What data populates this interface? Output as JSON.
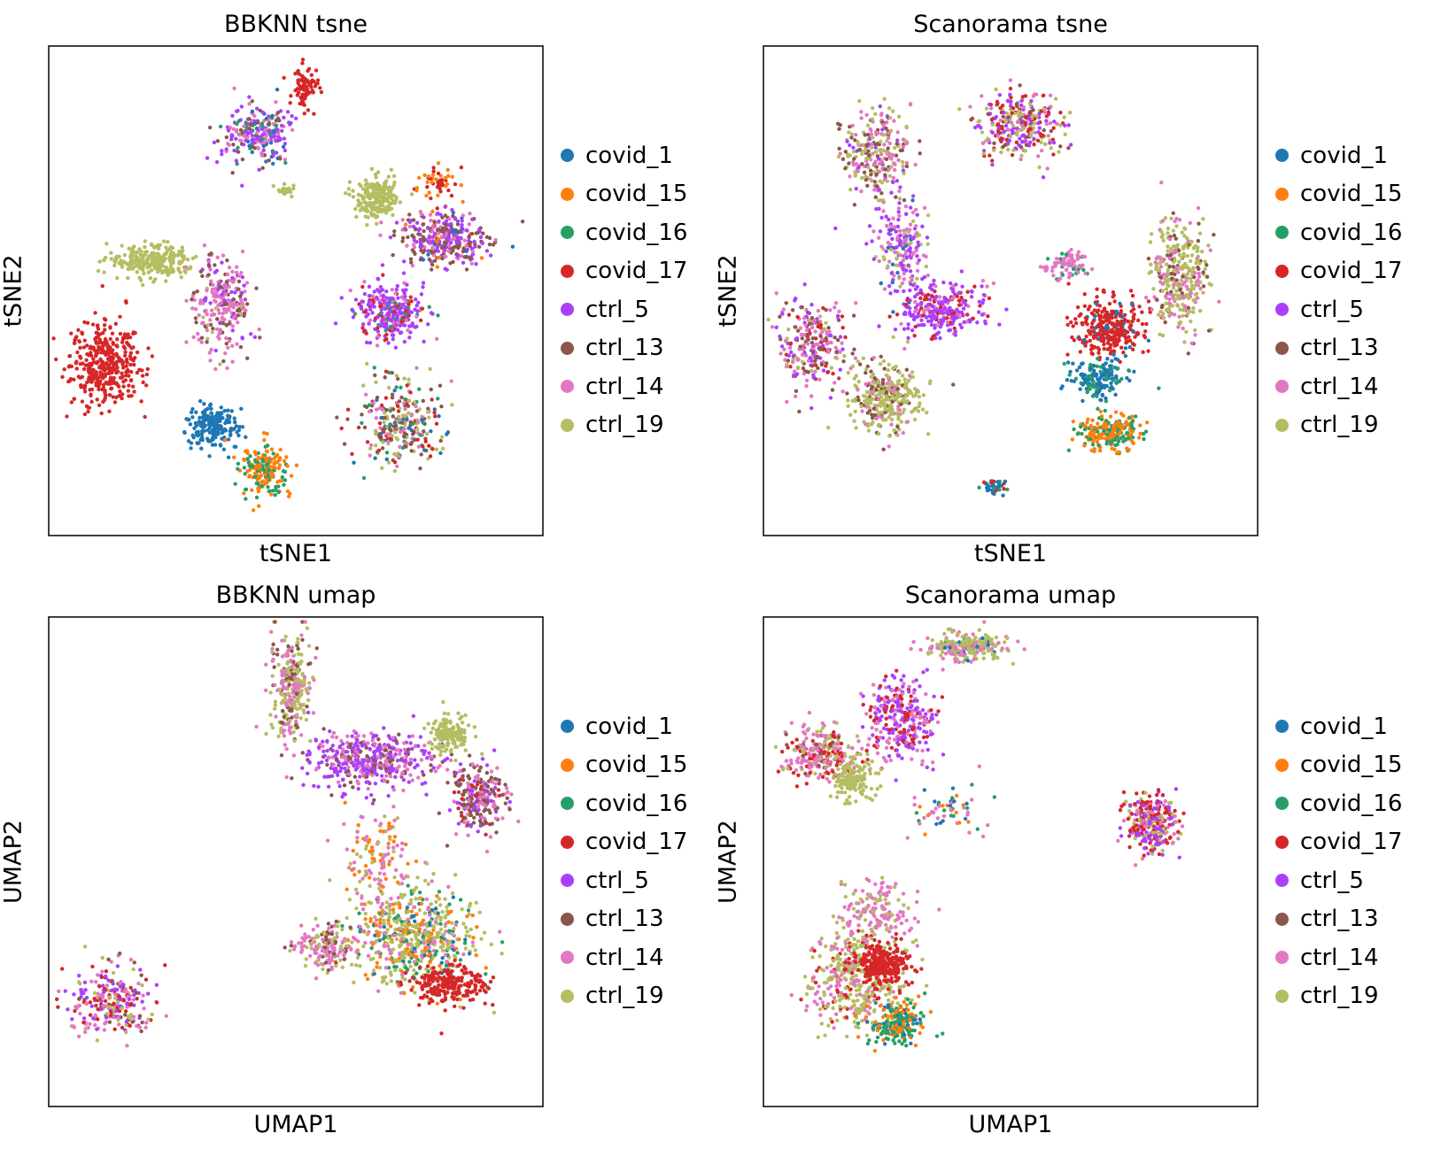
{
  "chart_data": [
    {
      "type": "scatter",
      "title": "BBKNN tsne",
      "xlabel": "tSNE1",
      "ylabel": "tSNE2",
      "xlim": [
        0,
        100
      ],
      "ylim": [
        0,
        100
      ],
      "grid": false,
      "ticks": false,
      "legend_placement": "right",
      "clusters": [
        {
          "x": 11.6,
          "y": 35,
          "sx": 5,
          "sy": 6,
          "n": 380,
          "mix": {
            "covid_17": 1
          }
        },
        {
          "x": 33,
          "y": 22.6,
          "sx": 3.5,
          "sy": 3.2,
          "n": 200,
          "mix": {
            "covid_1": 1
          }
        },
        {
          "x": 20.6,
          "y": 56,
          "sx": 6,
          "sy": 2.5,
          "n": 240,
          "mix": {
            "ctrl_19": 1
          }
        },
        {
          "x": 42,
          "y": 82,
          "sx": 5,
          "sy": 4,
          "n": 230,
          "mix": {
            "ctrl_5": 0.4,
            "ctrl_14": 0.25,
            "ctrl_13": 0.15,
            "covid_1": 0.1,
            "covid_16": 0.1
          }
        },
        {
          "x": 52,
          "y": 91,
          "sx": 2,
          "sy": 3,
          "n": 80,
          "mix": {
            "covid_17": 1
          }
        },
        {
          "x": 48,
          "y": 70.5,
          "sx": 1.2,
          "sy": 1,
          "n": 25,
          "mix": {
            "ctrl_19": 1
          }
        },
        {
          "x": 35,
          "y": 47,
          "sx": 4,
          "sy": 7,
          "n": 250,
          "mix": {
            "ctrl_14": 0.5,
            "ctrl_13": 0.3,
            "ctrl_5": 0.15,
            "ctrl_19": 0.05
          }
        },
        {
          "x": 44,
          "y": 13.6,
          "sx": 3.5,
          "sy": 4,
          "n": 180,
          "mix": {
            "covid_15": 0.6,
            "covid_16": 0.4
          }
        },
        {
          "x": 66,
          "y": 69,
          "sx": 3,
          "sy": 3,
          "n": 200,
          "mix": {
            "ctrl_19": 1
          }
        },
        {
          "x": 80,
          "y": 60.6,
          "sx": 6,
          "sy": 4,
          "n": 330,
          "mix": {
            "ctrl_5": 0.35,
            "ctrl_13": 0.35,
            "ctrl_14": 0.2,
            "covid_15": 0.05,
            "covid_1": 0.05
          }
        },
        {
          "x": 69,
          "y": 46,
          "sx": 5,
          "sy": 4,
          "n": 280,
          "mix": {
            "ctrl_5": 0.6,
            "covid_17": 0.15,
            "covid_16": 0.1,
            "ctrl_14": 0.15
          }
        },
        {
          "x": 71,
          "y": 22.6,
          "sx": 6,
          "sy": 6,
          "n": 280,
          "mix": {
            "ctrl_13": 0.25,
            "ctrl_19": 0.25,
            "ctrl_14": 0.2,
            "covid_1": 0.1,
            "covid_16": 0.1,
            "covid_17": 0.1
          }
        },
        {
          "x": 78,
          "y": 72,
          "sx": 3,
          "sy": 3,
          "n": 50,
          "mix": {
            "covid_17": 0.6,
            "covid_15": 0.4
          }
        }
      ]
    },
    {
      "type": "scatter",
      "title": "Scanorama tsne",
      "xlabel": "tSNE1",
      "ylabel": "tSNE2",
      "xlim": [
        0,
        100
      ],
      "ylim": [
        0,
        100
      ],
      "grid": false,
      "ticks": false,
      "legend_placement": "right",
      "clusters": [
        {
          "x": 23,
          "y": 78,
          "sx": 5,
          "sy": 6,
          "n": 260,
          "mix": {
            "ctrl_14": 0.35,
            "ctrl_19": 0.3,
            "ctrl_13": 0.25,
            "ctrl_5": 0.1
          }
        },
        {
          "x": 28,
          "y": 59,
          "sx": 4,
          "sy": 7,
          "n": 200,
          "mix": {
            "ctrl_5": 0.4,
            "ctrl_14": 0.3,
            "ctrl_19": 0.2,
            "covid_1": 0.1
          }
        },
        {
          "x": 36,
          "y": 46,
          "sx": 6,
          "sy": 4,
          "n": 280,
          "mix": {
            "ctrl_5": 0.6,
            "covid_17": 0.2,
            "ctrl_14": 0.2
          }
        },
        {
          "x": 10,
          "y": 39,
          "sx": 5,
          "sy": 7,
          "n": 250,
          "mix": {
            "ctrl_13": 0.3,
            "ctrl_14": 0.3,
            "covid_17": 0.15,
            "ctrl_5": 0.15,
            "ctrl_19": 0.1
          }
        },
        {
          "x": 25,
          "y": 28,
          "sx": 5,
          "sy": 5,
          "n": 330,
          "mix": {
            "ctrl_19": 0.6,
            "ctrl_13": 0.25,
            "ctrl_14": 0.15
          }
        },
        {
          "x": 52,
          "y": 84,
          "sx": 6,
          "sy": 5,
          "n": 300,
          "mix": {
            "ctrl_5": 0.3,
            "ctrl_19": 0.25,
            "covid_17": 0.2,
            "ctrl_14": 0.15,
            "ctrl_13": 0.1
          }
        },
        {
          "x": 70,
          "y": 42.5,
          "sx": 5,
          "sy": 4,
          "n": 300,
          "mix": {
            "covid_17": 0.85,
            "covid_1": 0.15
          }
        },
        {
          "x": 68,
          "y": 32,
          "sx": 4,
          "sy": 3,
          "n": 160,
          "mix": {
            "covid_1": 0.7,
            "covid_16": 0.3
          }
        },
        {
          "x": 70,
          "y": 21,
          "sx": 5,
          "sy": 2.5,
          "n": 220,
          "mix": {
            "covid_15": 0.55,
            "covid_16": 0.45
          }
        },
        {
          "x": 84,
          "y": 53,
          "sx": 4,
          "sy": 9,
          "n": 320,
          "mix": {
            "ctrl_19": 0.5,
            "ctrl_14": 0.3,
            "ctrl_13": 0.2
          }
        },
        {
          "x": 61,
          "y": 55,
          "sx": 3,
          "sy": 2,
          "n": 80,
          "mix": {
            "ctrl_14": 0.8,
            "covid_16": 0.2
          }
        },
        {
          "x": 47,
          "y": 10,
          "sx": 2,
          "sy": 1,
          "n": 35,
          "mix": {
            "covid_1": 0.5,
            "covid_16": 0.3,
            "covid_17": 0.2
          }
        }
      ]
    },
    {
      "type": "scatter",
      "title": "BBKNN umap",
      "xlabel": "UMAP1",
      "ylabel": "UMAP2",
      "xlim": [
        0,
        100
      ],
      "ylim": [
        0,
        100
      ],
      "grid": false,
      "ticks": false,
      "legend_placement": "right",
      "clusters": [
        {
          "x": 49,
          "y": 86,
          "sx": 3,
          "sy": 8,
          "n": 280,
          "mix": {
            "ctrl_19": 0.45,
            "ctrl_14": 0.35,
            "ctrl_13": 0.2
          }
        },
        {
          "x": 65,
          "y": 70.5,
          "sx": 9,
          "sy": 4,
          "n": 420,
          "mix": {
            "ctrl_5": 0.5,
            "ctrl_14": 0.35,
            "ctrl_13": 0.15
          }
        },
        {
          "x": 81,
          "y": 76,
          "sx": 3,
          "sy": 2.5,
          "n": 150,
          "mix": {
            "ctrl_19": 1
          }
        },
        {
          "x": 87,
          "y": 63,
          "sx": 4,
          "sy": 5,
          "n": 250,
          "mix": {
            "ctrl_13": 0.4,
            "ctrl_14": 0.35,
            "ctrl_5": 0.15,
            "covid_17": 0.1
          }
        },
        {
          "x": 74,
          "y": 34,
          "sx": 9,
          "sy": 7,
          "n": 600,
          "mix": {
            "ctrl_19": 0.45,
            "covid_15": 0.15,
            "covid_16": 0.15,
            "ctrl_14": 0.15,
            "covid_1": 0.1
          }
        },
        {
          "x": 81.5,
          "y": 25,
          "sx": 5,
          "sy": 3,
          "n": 220,
          "mix": {
            "covid_17": 1
          }
        },
        {
          "x": 56,
          "y": 32.5,
          "sx": 5,
          "sy": 3,
          "n": 150,
          "mix": {
            "ctrl_14": 0.5,
            "ctrl_19": 0.3,
            "ctrl_13": 0.2
          }
        },
        {
          "x": 13,
          "y": 21.7,
          "sx": 6,
          "sy": 5,
          "n": 260,
          "mix": {
            "ctrl_14": 0.35,
            "ctrl_5": 0.2,
            "covid_17": 0.2,
            "ctrl_19": 0.15,
            "ctrl_13": 0.1
          }
        },
        {
          "x": 67,
          "y": 50,
          "sx": 5,
          "sy": 7,
          "n": 140,
          "mix": {
            "covid_15": 0.4,
            "ctrl_14": 0.4,
            "ctrl_19": 0.2
          }
        }
      ]
    },
    {
      "type": "scatter",
      "title": "Scanorama umap",
      "xlabel": "UMAP1",
      "ylabel": "UMAP2",
      "xlim": [
        0,
        100
      ],
      "ylim": [
        0,
        100
      ],
      "grid": false,
      "ticks": false,
      "legend_placement": "right",
      "clusters": [
        {
          "x": 41,
          "y": 94,
          "sx": 6,
          "sy": 2,
          "n": 230,
          "mix": {
            "ctrl_19": 0.6,
            "ctrl_14": 0.3,
            "covid_1": 0.1
          }
        },
        {
          "x": 28,
          "y": 79,
          "sx": 5,
          "sy": 6,
          "n": 300,
          "mix": {
            "ctrl_5": 0.45,
            "ctrl_14": 0.3,
            "covid_17": 0.25
          }
        },
        {
          "x": 12,
          "y": 72,
          "sx": 5,
          "sy": 4,
          "n": 260,
          "mix": {
            "ctrl_14": 0.45,
            "covid_17": 0.25,
            "ctrl_19": 0.2,
            "ctrl_13": 0.1
          }
        },
        {
          "x": 18,
          "y": 67,
          "sx": 3,
          "sy": 3,
          "n": 150,
          "mix": {
            "ctrl_19": 1
          }
        },
        {
          "x": 37,
          "y": 60.5,
          "sx": 5,
          "sy": 3,
          "n": 60,
          "mix": {
            "ctrl_14": 0.5,
            "covid_16": 0.25,
            "covid_1": 0.15,
            "covid_15": 0.1
          }
        },
        {
          "x": 78.5,
          "y": 58,
          "sx": 3.5,
          "sy": 4.5,
          "n": 300,
          "mix": {
            "covid_17": 0.35,
            "ctrl_5": 0.25,
            "ctrl_14": 0.2,
            "ctrl_19": 0.2
          }
        },
        {
          "x": 19,
          "y": 26,
          "sx": 7,
          "sy": 7,
          "n": 450,
          "mix": {
            "ctrl_19": 0.6,
            "ctrl_14": 0.25,
            "covid_17": 0.15
          }
        },
        {
          "x": 24,
          "y": 29,
          "sx": 4,
          "sy": 3,
          "n": 260,
          "mix": {
            "covid_17": 1
          }
        },
        {
          "x": 27,
          "y": 17,
          "sx": 4,
          "sy": 3,
          "n": 220,
          "mix": {
            "covid_16": 0.55,
            "covid_15": 0.35,
            "covid_1": 0.1
          }
        },
        {
          "x": 23,
          "y": 40,
          "sx": 5,
          "sy": 4,
          "n": 140,
          "mix": {
            "ctrl_14": 0.7,
            "ctrl_19": 0.3
          }
        }
      ]
    }
  ],
  "legend": [
    {
      "label": "covid_1",
      "color": "#1f77b4"
    },
    {
      "label": "covid_15",
      "color": "#ff7f0e"
    },
    {
      "label": "covid_16",
      "color": "#279e68"
    },
    {
      "label": "covid_17",
      "color": "#d62728"
    },
    {
      "label": "ctrl_5",
      "color": "#aa40fc"
    },
    {
      "label": "ctrl_13",
      "color": "#8c564b"
    },
    {
      "label": "ctrl_14",
      "color": "#e377c2"
    },
    {
      "label": "ctrl_19",
      "color": "#b5bd61"
    }
  ]
}
